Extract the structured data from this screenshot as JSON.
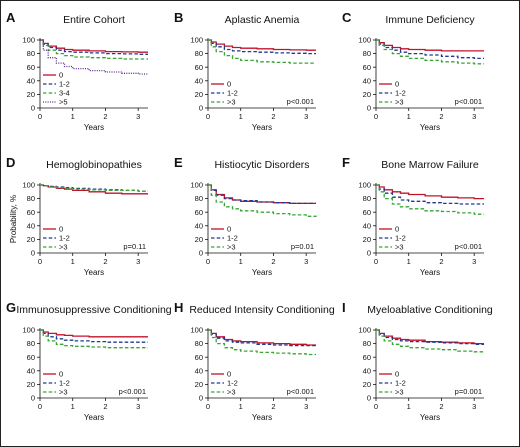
{
  "chart_data": [
    {
      "type": "line",
      "panel_letter": "A",
      "title": "Entire Cohort",
      "xlabel": "Years",
      "ylabel": "Probability, %",
      "ylabel_shown": false,
      "xlim": [
        0,
        3.3
      ],
      "ylim": [
        0,
        100
      ],
      "xticks": [
        0,
        1,
        2,
        3
      ],
      "yticks": [
        0,
        20,
        40,
        60,
        80,
        100
      ],
      "p_value": "",
      "legend_position": "bottom-left",
      "series": [
        {
          "name": "0",
          "color": "#c0142b",
          "dash": "solid",
          "x": [
            0,
            0.1,
            0.25,
            0.5,
            0.75,
            1,
            1.5,
            2,
            2.5,
            3,
            3.3
          ],
          "y": [
            100,
            95,
            91,
            88,
            86,
            85,
            84,
            83,
            82.5,
            82,
            82
          ]
        },
        {
          "name": "1-2",
          "color": "#1f3a93",
          "dash": "dashed",
          "x": [
            0,
            0.1,
            0.25,
            0.5,
            0.75,
            1,
            1.5,
            2,
            2.5,
            3,
            3.3
          ],
          "y": [
            100,
            94,
            89,
            85,
            83,
            82,
            81,
            80,
            79.5,
            79,
            79
          ]
        },
        {
          "name": "3-4",
          "color": "#3aa535",
          "dash": "dashed",
          "x": [
            0,
            0.1,
            0.25,
            0.5,
            0.75,
            1,
            1.5,
            2,
            2.5,
            3,
            3.3
          ],
          "y": [
            100,
            92,
            85,
            80,
            77,
            75,
            74,
            73,
            72,
            72,
            72
          ]
        },
        {
          "name": ">5",
          "color": "#5a2d82",
          "dash": "dotted",
          "x": [
            0,
            0.1,
            0.25,
            0.5,
            0.75,
            1,
            1.5,
            2,
            2.5,
            3,
            3.3
          ],
          "y": [
            100,
            85,
            74,
            66,
            61,
            58,
            55,
            53,
            51,
            50,
            50
          ]
        }
      ]
    },
    {
      "type": "line",
      "panel_letter": "B",
      "title": "Aplastic Anemia",
      "xlabel": "Years",
      "ylabel": "Probability, %",
      "ylabel_shown": false,
      "xlim": [
        0,
        3.3
      ],
      "ylim": [
        0,
        100
      ],
      "xticks": [
        0,
        1,
        2,
        3
      ],
      "yticks": [
        0,
        20,
        40,
        60,
        80,
        100
      ],
      "p_value": "p<0.001",
      "legend_position": "bottom-left",
      "series": [
        {
          "name": "0",
          "color": "#c0142b",
          "dash": "solid",
          "x": [
            0,
            0.1,
            0.25,
            0.5,
            0.75,
            1,
            1.5,
            2,
            2.5,
            3,
            3.3
          ],
          "y": [
            100,
            97,
            94,
            91,
            89,
            88,
            87,
            86,
            85.5,
            85,
            85
          ]
        },
        {
          "name": "1-2",
          "color": "#1f3a93",
          "dash": "dashed",
          "x": [
            0,
            0.1,
            0.25,
            0.5,
            0.75,
            1,
            1.5,
            2,
            2.5,
            3,
            3.3
          ],
          "y": [
            100,
            95,
            90,
            86,
            84,
            83,
            82,
            81,
            80.5,
            80,
            80
          ]
        },
        {
          "name": ">3",
          "color": "#3aa535",
          "dash": "dashed",
          "x": [
            0,
            0.1,
            0.25,
            0.5,
            0.75,
            1,
            1.5,
            2,
            2.5,
            3,
            3.3
          ],
          "y": [
            100,
            90,
            83,
            77,
            73,
            70,
            68,
            67,
            66,
            66,
            66
          ]
        }
      ]
    },
    {
      "type": "line",
      "panel_letter": "C",
      "title": "Immune Deficiency",
      "xlabel": "Years",
      "ylabel": "Probability, %",
      "ylabel_shown": false,
      "xlim": [
        0,
        3.3
      ],
      "ylim": [
        0,
        100
      ],
      "xticks": [
        0,
        1,
        2,
        3
      ],
      "yticks": [
        0,
        20,
        40,
        60,
        80,
        100
      ],
      "p_value": "p<0.001",
      "legend_position": "bottom-left",
      "series": [
        {
          "name": "0",
          "color": "#c0142b",
          "dash": "solid",
          "x": [
            0,
            0.1,
            0.25,
            0.5,
            0.75,
            1,
            1.5,
            2,
            2.5,
            3,
            3.3
          ],
          "y": [
            100,
            96,
            92,
            89,
            87,
            86,
            85,
            84,
            84,
            84,
            84
          ]
        },
        {
          "name": "1-2",
          "color": "#1f3a93",
          "dash": "dashed",
          "x": [
            0,
            0.1,
            0.25,
            0.5,
            0.75,
            1,
            1.5,
            2,
            2.5,
            3,
            3.3
          ],
          "y": [
            100,
            94,
            89,
            85,
            82,
            80,
            78,
            76,
            74,
            73,
            73
          ]
        },
        {
          "name": ">3",
          "color": "#3aa535",
          "dash": "dashed",
          "x": [
            0,
            0.1,
            0.25,
            0.5,
            0.75,
            1,
            1.5,
            2,
            2.5,
            3,
            3.3
          ],
          "y": [
            100,
            92,
            86,
            80,
            76,
            73,
            70,
            68,
            66,
            65,
            65
          ]
        }
      ]
    },
    {
      "type": "line",
      "panel_letter": "D",
      "title": "Hemoglobinopathies",
      "xlabel": "Years",
      "ylabel": "Probability, %",
      "ylabel_shown": true,
      "xlim": [
        0,
        3.3
      ],
      "ylim": [
        0,
        100
      ],
      "xticks": [
        0,
        1,
        2,
        3
      ],
      "yticks": [
        0,
        20,
        40,
        60,
        80,
        100
      ],
      "p_value": "p=0.11",
      "legend_position": "bottom-left",
      "series": [
        {
          "name": "0",
          "color": "#c0142b",
          "dash": "solid",
          "x": [
            0,
            0.1,
            0.25,
            0.5,
            0.75,
            1,
            1.5,
            2,
            2.5,
            3,
            3.3
          ],
          "y": [
            100,
            99,
            97,
            95,
            94,
            92,
            90,
            88,
            87,
            87,
            87
          ]
        },
        {
          "name": "1-2",
          "color": "#1f3a93",
          "dash": "dashed",
          "x": [
            0,
            0.1,
            0.25,
            0.5,
            0.75,
            1,
            1.5,
            2,
            2.5,
            3,
            3.3
          ],
          "y": [
            100,
            99,
            98,
            97,
            96,
            95,
            94,
            93,
            92,
            91,
            91
          ]
        },
        {
          "name": ">3",
          "color": "#3aa535",
          "dash": "dashed",
          "x": [
            0,
            0.1,
            0.25,
            0.5,
            0.75,
            1,
            1.5,
            2,
            2.5,
            3,
            3.3
          ],
          "y": [
            100,
            99,
            97,
            96,
            95,
            94,
            93,
            92,
            92,
            91,
            91
          ]
        }
      ]
    },
    {
      "type": "line",
      "panel_letter": "E",
      "title": "Histiocytic Disorders",
      "xlabel": "Years",
      "ylabel": "Probability, %",
      "ylabel_shown": false,
      "xlim": [
        0,
        3.3
      ],
      "ylim": [
        0,
        100
      ],
      "xticks": [
        0,
        1,
        2,
        3
      ],
      "yticks": [
        0,
        20,
        40,
        60,
        80,
        100
      ],
      "p_value": "p=0.01",
      "legend_position": "bottom-left",
      "series": [
        {
          "name": "0",
          "color": "#c0142b",
          "dash": "solid",
          "x": [
            0,
            0.1,
            0.25,
            0.5,
            0.75,
            1,
            1.5,
            2,
            2.5,
            3,
            3.3
          ],
          "y": [
            100,
            93,
            86,
            81,
            78,
            76,
            75,
            74,
            73,
            73,
            73
          ]
        },
        {
          "name": "1-2",
          "color": "#1f3a93",
          "dash": "dashed",
          "x": [
            0,
            0.1,
            0.25,
            0.5,
            0.75,
            1,
            1.5,
            2,
            2.5,
            3,
            3.3
          ],
          "y": [
            100,
            92,
            85,
            80,
            78,
            77,
            75,
            74,
            73,
            73,
            73
          ]
        },
        {
          "name": ">3",
          "color": "#3aa535",
          "dash": "dashed",
          "x": [
            0,
            0.1,
            0.25,
            0.5,
            0.75,
            1,
            1.5,
            2,
            2.5,
            3,
            3.3
          ],
          "y": [
            100,
            85,
            75,
            68,
            65,
            62,
            60,
            58,
            56,
            54,
            53
          ]
        }
      ]
    },
    {
      "type": "line",
      "panel_letter": "F",
      "title": "Bone Marrow Failure",
      "xlabel": "Years",
      "ylabel": "Probability, %",
      "ylabel_shown": false,
      "xlim": [
        0,
        3.3
      ],
      "ylim": [
        0,
        100
      ],
      "xticks": [
        0,
        1,
        2,
        3
      ],
      "yticks": [
        0,
        20,
        40,
        60,
        80,
        100
      ],
      "p_value": "p<0.001",
      "legend_position": "bottom-left",
      "series": [
        {
          "name": "0",
          "color": "#c0142b",
          "dash": "solid",
          "x": [
            0,
            0.1,
            0.25,
            0.5,
            0.75,
            1,
            1.5,
            2,
            2.5,
            3,
            3.3
          ],
          "y": [
            100,
            97,
            93,
            90,
            88,
            86,
            84,
            82,
            81,
            80,
            80
          ]
        },
        {
          "name": "1-2",
          "color": "#1f3a93",
          "dash": "dashed",
          "x": [
            0,
            0.1,
            0.25,
            0.5,
            0.75,
            1,
            1.5,
            2,
            2.5,
            3,
            3.3
          ],
          "y": [
            100,
            94,
            88,
            82,
            78,
            76,
            74,
            73,
            72,
            72,
            72
          ]
        },
        {
          "name": ">3",
          "color": "#3aa535",
          "dash": "dashed",
          "x": [
            0,
            0.1,
            0.25,
            0.5,
            0.75,
            1,
            1.5,
            2,
            2.5,
            3,
            3.3
          ],
          "y": [
            100,
            90,
            80,
            72,
            68,
            65,
            62,
            61,
            59,
            57,
            57
          ]
        }
      ]
    },
    {
      "type": "line",
      "panel_letter": "G",
      "title": "Immunosuppressive Conditioning",
      "xlabel": "Years",
      "ylabel": "Probability, %",
      "ylabel_shown": false,
      "xlim": [
        0,
        3.3
      ],
      "ylim": [
        0,
        100
      ],
      "xticks": [
        0,
        1,
        2,
        3
      ],
      "yticks": [
        0,
        20,
        40,
        60,
        80,
        100
      ],
      "p_value": "p<0.001",
      "legend_position": "bottom-left",
      "series": [
        {
          "name": "0",
          "color": "#c0142b",
          "dash": "solid",
          "x": [
            0,
            0.1,
            0.25,
            0.5,
            0.75,
            1,
            1.5,
            2,
            2.5,
            3,
            3.3
          ],
          "y": [
            100,
            97,
            95,
            93,
            92,
            91,
            90,
            90,
            90,
            90,
            90
          ]
        },
        {
          "name": "1-2",
          "color": "#1f3a93",
          "dash": "dashed",
          "x": [
            0,
            0.1,
            0.25,
            0.5,
            0.75,
            1,
            1.5,
            2,
            2.5,
            3,
            3.3
          ],
          "y": [
            100,
            95,
            90,
            87,
            85,
            84,
            83,
            82,
            82,
            82,
            82
          ]
        },
        {
          "name": ">3",
          "color": "#3aa535",
          "dash": "dashed",
          "x": [
            0,
            0.1,
            0.25,
            0.5,
            0.75,
            1,
            1.5,
            2,
            2.5,
            3,
            3.3
          ],
          "y": [
            100,
            91,
            84,
            79,
            77,
            76,
            75,
            74,
            74,
            74,
            74
          ]
        }
      ]
    },
    {
      "type": "line",
      "panel_letter": "H",
      "title": "Reduced Intensity Conditioning",
      "xlabel": "Years",
      "ylabel": "Probability, %",
      "ylabel_shown": false,
      "xlim": [
        0,
        3.3
      ],
      "ylim": [
        0,
        100
      ],
      "xticks": [
        0,
        1,
        2,
        3
      ],
      "yticks": [
        0,
        20,
        40,
        60,
        80,
        100
      ],
      "p_value": "p<0.001",
      "legend_position": "bottom-left",
      "series": [
        {
          "name": "0",
          "color": "#c0142b",
          "dash": "solid",
          "x": [
            0,
            0.1,
            0.25,
            0.5,
            0.75,
            1,
            1.5,
            2,
            2.5,
            3,
            3.3
          ],
          "y": [
            100,
            95,
            90,
            86,
            84,
            83,
            81,
            80,
            79,
            78,
            78
          ]
        },
        {
          "name": "1-2",
          "color": "#1f3a93",
          "dash": "dashed",
          "x": [
            0,
            0.1,
            0.25,
            0.5,
            0.75,
            1,
            1.5,
            2,
            2.5,
            3,
            3.3
          ],
          "y": [
            100,
            94,
            88,
            84,
            82,
            81,
            79,
            78,
            77,
            77,
            77
          ]
        },
        {
          "name": ">3",
          "color": "#3aa535",
          "dash": "dashed",
          "x": [
            0,
            0.1,
            0.25,
            0.5,
            0.75,
            1,
            1.5,
            2,
            2.5,
            3,
            3.3
          ],
          "y": [
            100,
            89,
            80,
            74,
            71,
            69,
            67,
            66,
            65,
            64,
            64
          ]
        }
      ]
    },
    {
      "type": "line",
      "panel_letter": "I",
      "title": "Myeloablative Conditioning",
      "xlabel": "Years",
      "ylabel": "Probability, %",
      "ylabel_shown": false,
      "xlim": [
        0,
        3.3
      ],
      "ylim": [
        0,
        100
      ],
      "xticks": [
        0,
        1,
        2,
        3
      ],
      "yticks": [
        0,
        20,
        40,
        60,
        80,
        100
      ],
      "p_value": "p=0.001",
      "legend_position": "bottom-left",
      "series": [
        {
          "name": "0",
          "color": "#c0142b",
          "dash": "solid",
          "x": [
            0,
            0.1,
            0.25,
            0.5,
            0.75,
            1,
            1.5,
            2,
            2.5,
            3,
            3.3
          ],
          "y": [
            100,
            95,
            91,
            88,
            86,
            85,
            83,
            82,
            81,
            80,
            80
          ]
        },
        {
          "name": "1-2",
          "color": "#1f3a93",
          "dash": "dashed",
          "x": [
            0,
            0.1,
            0.25,
            0.5,
            0.75,
            1,
            1.5,
            2,
            2.5,
            3,
            3.3
          ],
          "y": [
            100,
            94,
            89,
            86,
            84,
            83,
            82,
            81,
            80,
            79,
            79
          ]
        },
        {
          "name": ">3",
          "color": "#3aa535",
          "dash": "dashed",
          "x": [
            0,
            0.1,
            0.25,
            0.5,
            0.75,
            1,
            1.5,
            2,
            2.5,
            3,
            3.3
          ],
          "y": [
            100,
            91,
            84,
            79,
            76,
            74,
            72,
            71,
            69,
            68,
            68
          ]
        }
      ]
    }
  ]
}
